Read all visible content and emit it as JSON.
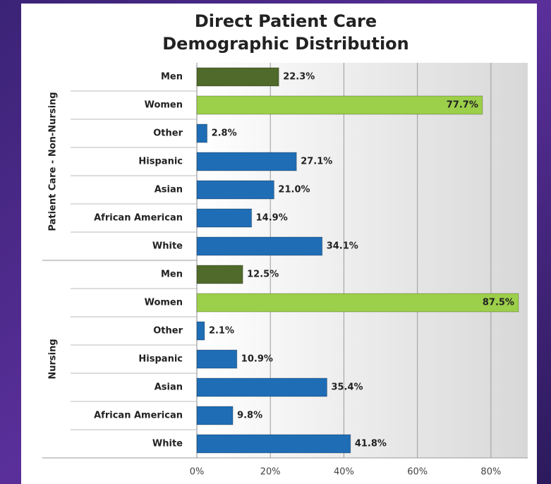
{
  "chart_data": {
    "type": "bar",
    "title": [
      "Direct Patient Care",
      "Demographic Distribution"
    ],
    "groups": [
      {
        "name": "Patient Care - Non-Nursing",
        "categories": [
          "Men",
          "Women",
          "Other",
          "Hispanic",
          "Asian",
          "African American",
          "White"
        ],
        "values": [
          22.3,
          77.7,
          2.8,
          27.1,
          21.0,
          14.9,
          34.1
        ],
        "value_labels": [
          "22.3%",
          "77.7%",
          "2.8%",
          "27.1%",
          "21.0%",
          "14.9%",
          "34.1%"
        ],
        "colors": [
          "#4f6a2a",
          "#9ccf4a",
          "#1f6db5",
          "#1f6db5",
          "#1f6db5",
          "#1f6db5",
          "#1f6db5"
        ]
      },
      {
        "name": "Nursing",
        "categories": [
          "Men",
          "Women",
          "Other",
          "Hispanic",
          "Asian",
          "African American",
          "White"
        ],
        "values": [
          12.5,
          87.5,
          2.1,
          10.9,
          35.4,
          9.8,
          41.8
        ],
        "value_labels": [
          "12.5%",
          "87.5%",
          "2.1%",
          "10.9%",
          "35.4%",
          "9.8%",
          "41.8%"
        ],
        "colors": [
          "#4f6a2a",
          "#9ccf4a",
          "#1f6db5",
          "#1f6db5",
          "#1f6db5",
          "#1f6db5",
          "#1f6db5"
        ]
      }
    ],
    "xlim": [
      0,
      90
    ],
    "xticks": [
      {
        "value": 0,
        "label": "0%"
      },
      {
        "value": 20,
        "label": "20%"
      },
      {
        "value": 40,
        "label": "40%"
      },
      {
        "value": 60,
        "label": "60%"
      },
      {
        "value": 80,
        "label": "80%"
      }
    ],
    "grid": true
  }
}
